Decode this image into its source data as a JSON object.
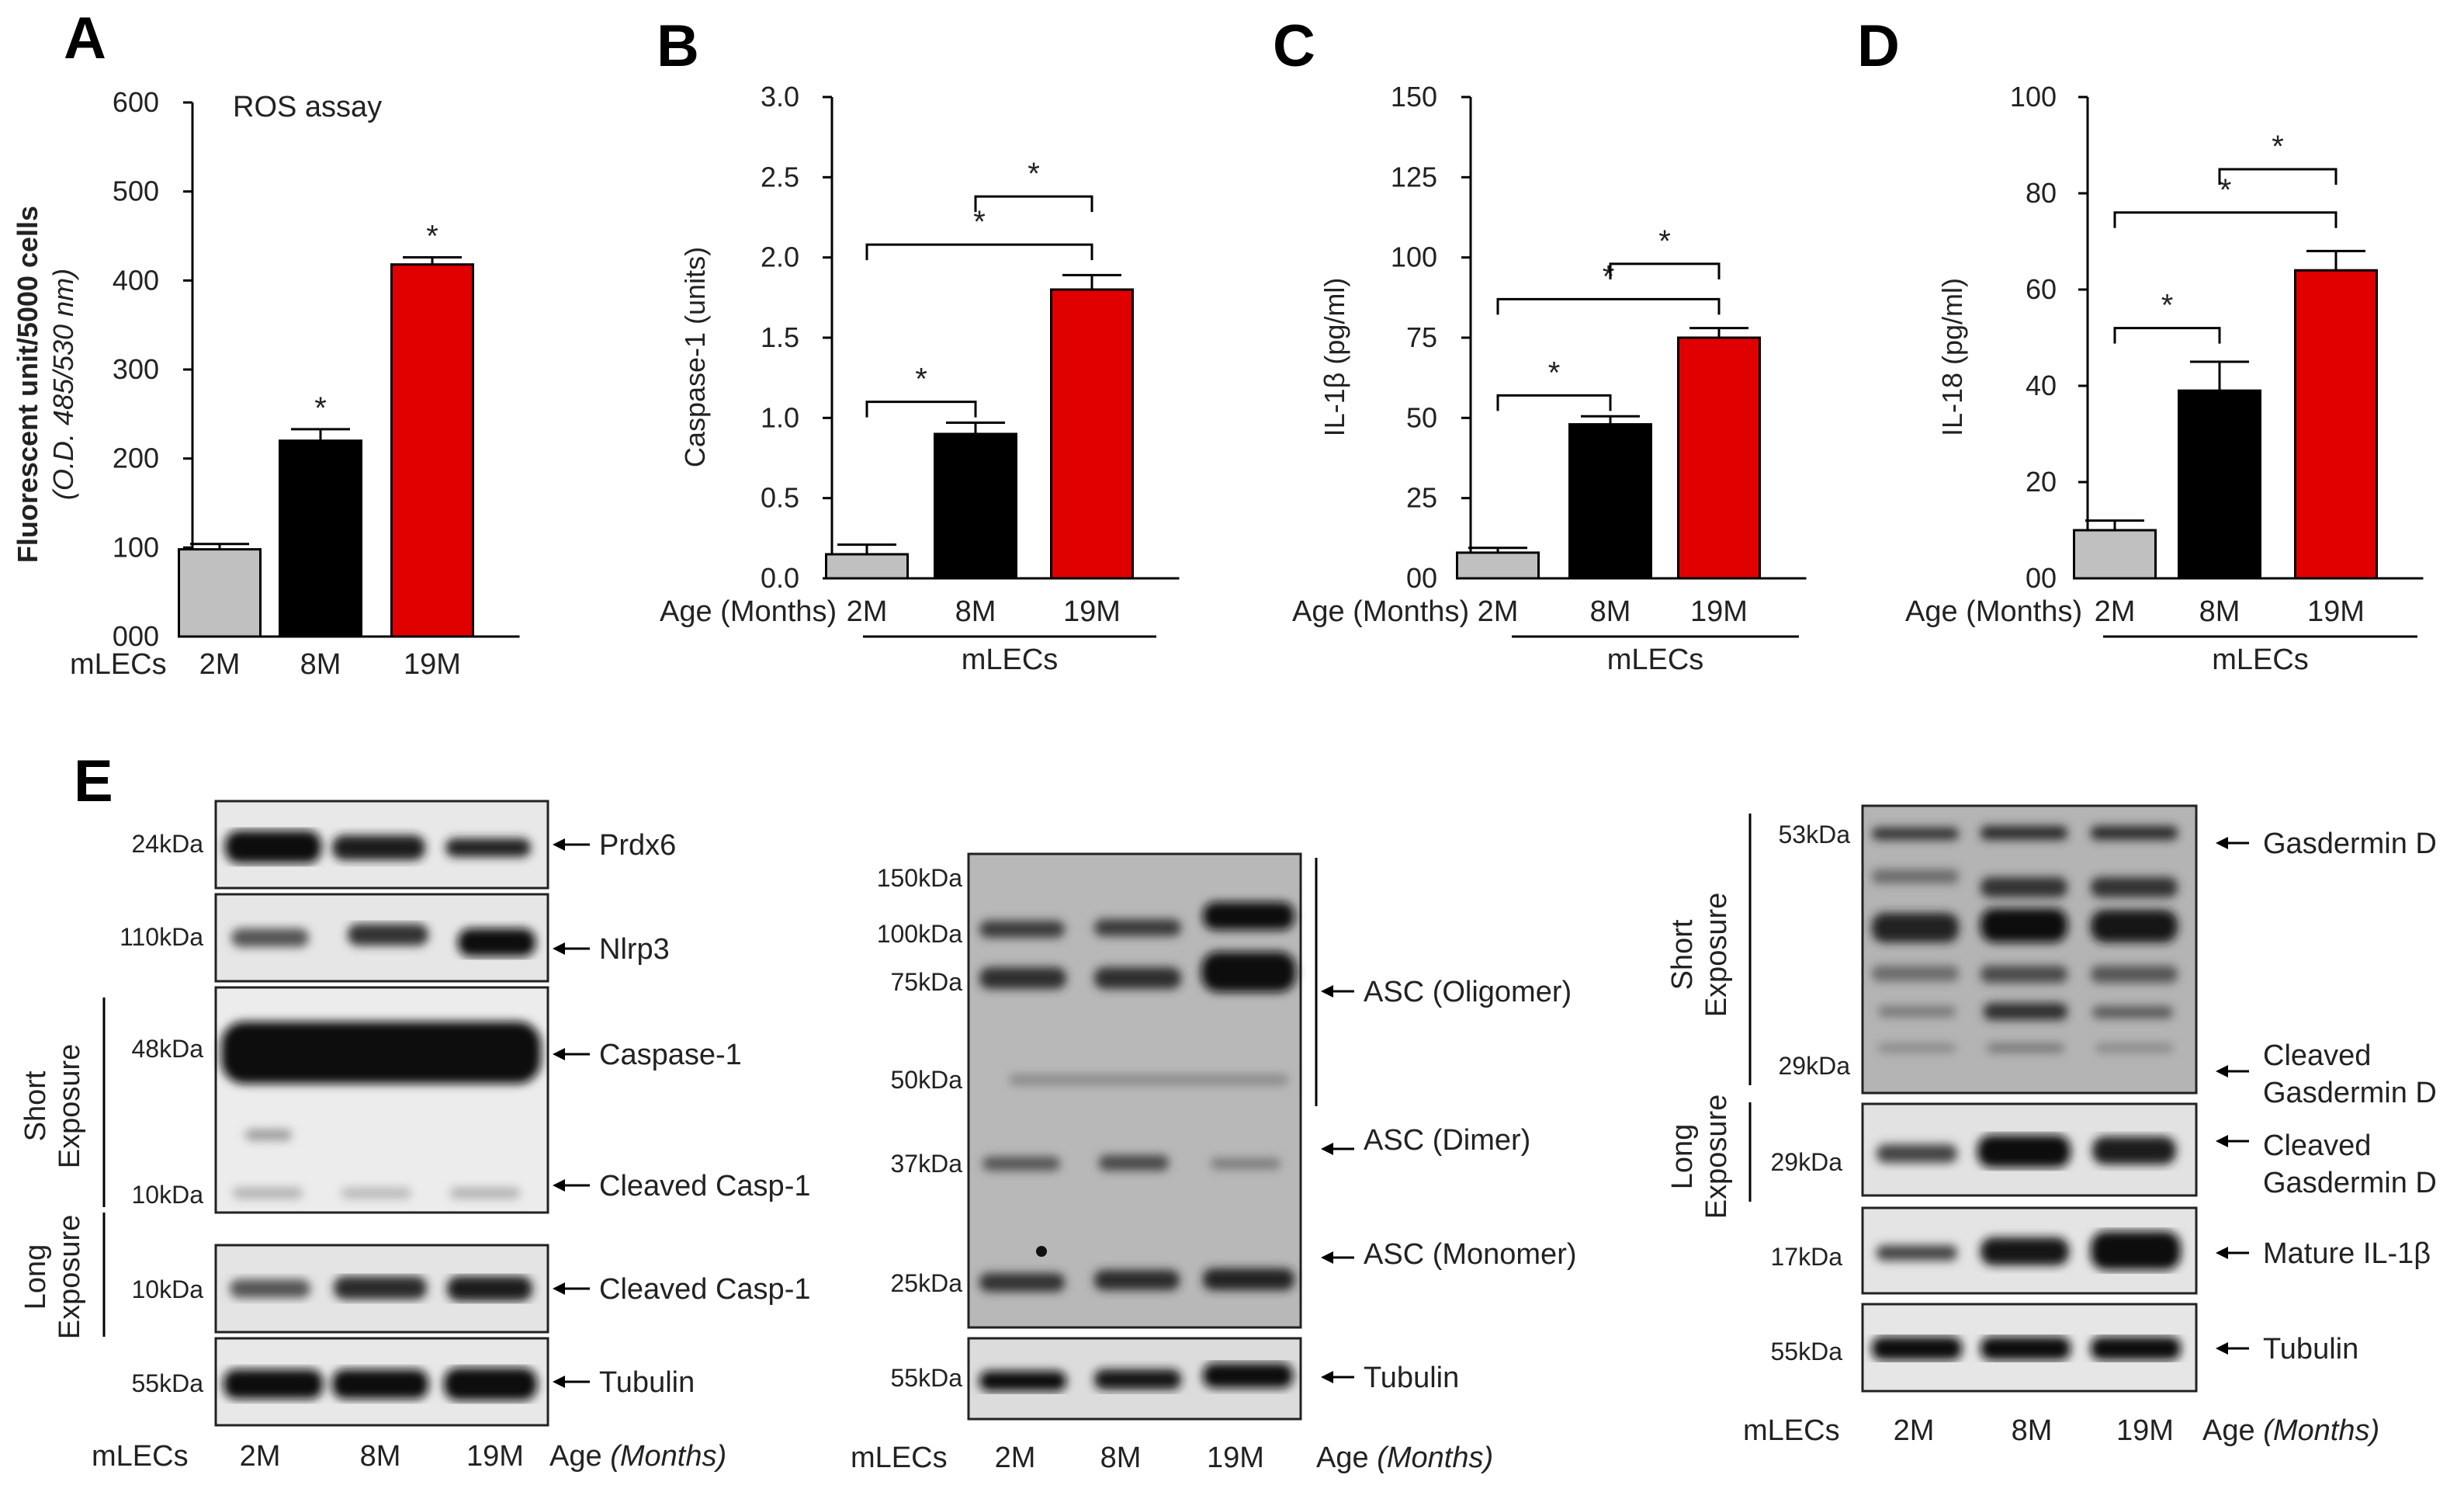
{
  "chart_data": [
    {
      "panel": "A",
      "type": "bar",
      "title": "ROS assay",
      "ylabel": "Fluorescent unit/5000 cells",
      "ylabel_sub": "(O.D. 485/530 nm)",
      "xlabel": "mLECs",
      "categories": [
        "2M",
        "8M",
        "19M"
      ],
      "values": [
        98,
        220,
        418
      ],
      "errors": [
        6,
        13,
        8
      ],
      "colors": [
        "#c0c0c0",
        "#000000",
        "#e00000"
      ],
      "ylim": [
        0,
        600
      ],
      "ytick_values": [
        0,
        100,
        200,
        300,
        400,
        500,
        600
      ],
      "yticks": [
        "000",
        "100",
        "200",
        "300",
        "400",
        "500",
        "600"
      ],
      "significance": [
        {
          "type": "bar",
          "index": 1,
          "label": "*"
        },
        {
          "type": "bar",
          "index": 2,
          "label": "*"
        }
      ]
    },
    {
      "panel": "B",
      "type": "bar",
      "ylabel": "Caspase-1 (units)",
      "xlabel": "Age (Months)",
      "group_label": "mLECs",
      "categories": [
        "2M",
        "8M",
        "19M"
      ],
      "values": [
        0.15,
        0.9,
        1.8
      ],
      "errors": [
        0.06,
        0.07,
        0.09
      ],
      "colors": [
        "#c0c0c0",
        "#000000",
        "#e00000"
      ],
      "ylim": [
        0,
        3.0
      ],
      "ytick_values": [
        0,
        0.5,
        1.0,
        1.5,
        2.0,
        2.5,
        3.0
      ],
      "yticks": [
        "0.0",
        "0.5",
        "1.0",
        "1.5",
        "2.0",
        "2.5",
        "3.0"
      ],
      "significance": [
        {
          "type": "bracket",
          "from": 0,
          "to": 1,
          "y": 1.1,
          "label": "*"
        },
        {
          "type": "bracket",
          "from": 0,
          "to": 2,
          "y": 2.08,
          "label": "*"
        },
        {
          "type": "bracket",
          "from": 1,
          "to": 2,
          "y": 2.38,
          "label": "*"
        }
      ]
    },
    {
      "panel": "C",
      "type": "bar",
      "ylabel": "IL-1β (pg/ml)",
      "xlabel": "Age (Months)",
      "group_label": "mLECs",
      "categories": [
        "2M",
        "8M",
        "19M"
      ],
      "values": [
        8,
        48,
        75
      ],
      "errors": [
        1.5,
        2.5,
        3
      ],
      "colors": [
        "#c0c0c0",
        "#000000",
        "#e00000"
      ],
      "ylim": [
        0,
        150
      ],
      "ytick_values": [
        0,
        25,
        50,
        75,
        100,
        125,
        150
      ],
      "yticks": [
        "00",
        "25",
        "50",
        "75",
        "100",
        "125",
        "150"
      ],
      "significance": [
        {
          "type": "bracket",
          "from": 0,
          "to": 1,
          "y": 57,
          "label": "*"
        },
        {
          "type": "bracket",
          "from": 0,
          "to": 2,
          "y": 87,
          "label": "*"
        },
        {
          "type": "bracket",
          "from": 1,
          "to": 2,
          "y": 98,
          "label": "*"
        }
      ]
    },
    {
      "panel": "D",
      "type": "bar",
      "ylabel": "IL-18 (pg/ml)",
      "xlabel": "Age (Months)",
      "group_label": "mLECs",
      "categories": [
        "2M",
        "8M",
        "19M"
      ],
      "values": [
        10,
        39,
        64
      ],
      "errors": [
        2,
        6,
        4
      ],
      "colors": [
        "#c0c0c0",
        "#000000",
        "#e00000"
      ],
      "ylim": [
        0,
        100
      ],
      "ytick_values": [
        0,
        20,
        40,
        60,
        80,
        100
      ],
      "yticks": [
        "00",
        "20",
        "40",
        "60",
        "80",
        "100"
      ],
      "significance": [
        {
          "type": "bracket",
          "from": 0,
          "to": 1,
          "y": 52,
          "label": "*"
        },
        {
          "type": "bracket",
          "from": 0,
          "to": 2,
          "y": 76,
          "label": "*"
        },
        {
          "type": "bracket",
          "from": 1,
          "to": 2,
          "y": 85,
          "label": "*"
        }
      ]
    }
  ],
  "blots": {
    "panel_label": "E",
    "left": {
      "rows": [
        {
          "kda": [
            "24kDa"
          ],
          "labels": [
            "Prdx6"
          ]
        },
        {
          "kda": [
            "110kDa"
          ],
          "labels": [
            "Nlrp3"
          ]
        },
        {
          "kda": [
            "48kDa",
            "10kDa"
          ],
          "labels": [
            "Caspase-1",
            "Cleaved Casp-1"
          ],
          "group": "Short Exposure"
        },
        {
          "kda": [
            "10kDa"
          ],
          "labels": [
            "Cleaved Casp-1"
          ],
          "group": "Long Exposure"
        },
        {
          "kda": [
            "55kDa"
          ],
          "labels": [
            "Tubulin"
          ]
        }
      ],
      "x_group": "mLECs",
      "lanes": [
        "2M",
        "8M",
        "19M"
      ],
      "age_label": "Age",
      "age_unit": "(Months)"
    },
    "middle": {
      "kda": [
        "150kDa",
        "100kDa",
        "75kDa",
        "50kDa",
        "37kDa",
        "25kDa",
        "55kDa"
      ],
      "labels": [
        "ASC (Oligomer)",
        "ASC (Dimer)",
        "ASC (Monomer)",
        "Tubulin"
      ],
      "x_group": "mLECs",
      "lanes": [
        "2M",
        "8M",
        "19M"
      ],
      "age_label": "Age",
      "age_unit": "(Months)"
    },
    "right": {
      "groups": [
        "Short Exposure",
        "Long Exposure"
      ],
      "kda": [
        "53kDa",
        "29kDa",
        "29kDa",
        "17kDa",
        "55kDa"
      ],
      "labels": [
        "Gasdermin D",
        "Cleaved Gasdermin D",
        "Cleaved Gasdermin D",
        "Mature IL-1β",
        "Tubulin"
      ],
      "x_group": "mLECs",
      "lanes": [
        "2M",
        "8M",
        "19M"
      ],
      "age_label": "Age",
      "age_unit": "(Months)"
    }
  }
}
